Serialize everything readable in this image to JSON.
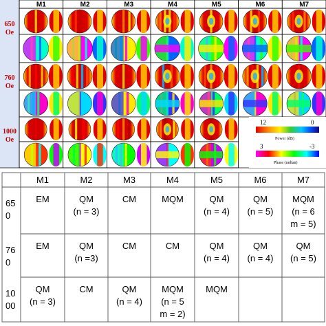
{
  "figure": {
    "columns": [
      "M1",
      "M2",
      "M3",
      "M4",
      "M5",
      "M6",
      "M7"
    ],
    "fields": [
      {
        "label_line1": "650",
        "label_line2": "Oe"
      },
      {
        "label_line1": "760",
        "label_line2": "Oe"
      },
      {
        "label_line1": "1000",
        "label_line2": "Oe"
      }
    ],
    "legend": {
      "power_max": "12",
      "power_min": "0",
      "power_label": "Power (dB)",
      "phase_max": "3",
      "phase_min": "-3",
      "phase_label": "Phase (radian)"
    }
  },
  "table": {
    "headers": [
      "M1",
      "M2",
      "M3",
      "M4",
      "M5",
      "M6",
      "M7"
    ],
    "rows": [
      {
        "label_lines": [
          "65",
          "0"
        ],
        "cells": [
          [
            "EM"
          ],
          [
            "QM",
            "(n = 3)"
          ],
          [
            "CM"
          ],
          [
            "MQM"
          ],
          [
            "QM",
            "(n = 4)"
          ],
          [
            "QM",
            "(n = 5)"
          ],
          [
            "MQM",
            "(n = 6",
            "m = 5)"
          ]
        ]
      },
      {
        "label_lines": [
          "76",
          "0"
        ],
        "cells": [
          [
            "EM"
          ],
          [
            "QM",
            "(n =3)"
          ],
          [
            "CM"
          ],
          [
            "CM"
          ],
          [
            "QM",
            "(n = 4)"
          ],
          [
            "QM",
            "(n = 4)"
          ],
          [
            "QM",
            "(n = 5)"
          ]
        ]
      },
      {
        "label_lines": [
          "10",
          "00"
        ],
        "cells": [
          [
            "QM",
            "(n = 3)"
          ],
          [
            "CM"
          ],
          [
            "QM",
            "(n = 4)"
          ],
          [
            "MQM",
            "(n = 5",
            "m = 2)"
          ],
          [
            "MQM"
          ],
          [],
          []
        ]
      }
    ]
  },
  "colors": {
    "field_label": "#c00000",
    "label_bg": "#dbe5f5",
    "grid_line": "#000000",
    "table_border": "#555555"
  }
}
